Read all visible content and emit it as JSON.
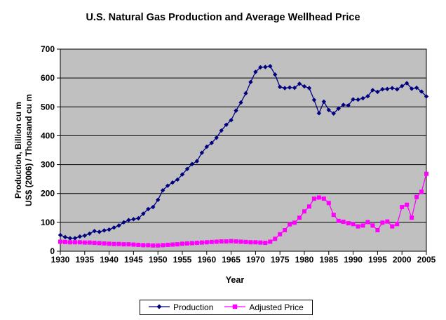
{
  "title": "U.S. Natural Gas Production and Average Wellhead Price",
  "colors": {
    "production_series": "#000080",
    "price_series": "#FF00FF",
    "plot_background": "#C0C0C0",
    "gridline": "#000000",
    "text": "#000000",
    "legend_background": "#FFFFFF"
  },
  "chart_data": {
    "type": "line",
    "title": "U.S. Natural Gas Production and Average Wellhead Price",
    "xlabel": "Year",
    "ylabel_line1": "Production, Billion cu m",
    "ylabel_line2": "US$ (2006) / Thousand cu m",
    "ylim": [
      0,
      700
    ],
    "y_ticks": [
      0,
      100,
      200,
      300,
      400,
      500,
      600,
      700
    ],
    "x_ticks": [
      1930,
      1935,
      1940,
      1945,
      1950,
      1955,
      1960,
      1965,
      1970,
      1975,
      1980,
      1985,
      1990,
      1995,
      2000,
      2005
    ],
    "grid": "horizontal",
    "legend_position": "bottom",
    "x": [
      1930,
      1931,
      1932,
      1933,
      1934,
      1935,
      1936,
      1937,
      1938,
      1939,
      1940,
      1941,
      1942,
      1943,
      1944,
      1945,
      1946,
      1947,
      1948,
      1949,
      1950,
      1951,
      1952,
      1953,
      1954,
      1955,
      1956,
      1957,
      1958,
      1959,
      1960,
      1961,
      1962,
      1963,
      1964,
      1965,
      1966,
      1967,
      1968,
      1969,
      1970,
      1971,
      1972,
      1973,
      1974,
      1975,
      1976,
      1977,
      1978,
      1979,
      1980,
      1981,
      1982,
      1983,
      1984,
      1985,
      1986,
      1987,
      1988,
      1989,
      1990,
      1991,
      1992,
      1993,
      1994,
      1995,
      1996,
      1997,
      1998,
      1999,
      2000,
      2001,
      2002,
      2003,
      2004,
      2005
    ],
    "series": [
      {
        "name": "Production",
        "marker": "diamond",
        "color": "#000080",
        "values": [
          56,
          49,
          45,
          45,
          51,
          54,
          61,
          70,
          67,
          72,
          75,
          82,
          89,
          100,
          108,
          111,
          114,
          130,
          146,
          153,
          178,
          211,
          227,
          238,
          248,
          266,
          285,
          302,
          312,
          341,
          362,
          375,
          393,
          418,
          438,
          454,
          487,
          515,
          547,
          586,
          621,
          637,
          638,
          641,
          612,
          569,
          565,
          567,
          566,
          580,
          571,
          565,
          524,
          478,
          518,
          489,
          477,
          494,
          507,
          505,
          526,
          525,
          530,
          537,
          558,
          552,
          561,
          562,
          565,
          561,
          572,
          582,
          563,
          566,
          553,
          536
        ]
      },
      {
        "name": "Adjusted Price",
        "marker": "square",
        "color": "#FF00FF",
        "values": [
          33,
          32,
          31,
          31,
          31,
          30,
          30,
          29,
          28,
          27,
          26,
          25,
          25,
          24,
          24,
          23,
          22,
          21,
          21,
          20,
          20,
          21,
          22,
          23,
          24,
          26,
          27,
          28,
          29,
          30,
          31,
          32,
          33,
          34,
          34,
          35,
          34,
          33,
          32,
          31,
          31,
          30,
          29,
          33,
          43,
          59,
          73,
          93,
          99,
          116,
          138,
          155,
          182,
          186,
          182,
          167,
          126,
          105,
          102,
          97,
          94,
          86,
          89,
          101,
          89,
          73,
          99,
          103,
          86,
          94,
          153,
          161,
          116,
          188,
          206,
          268
        ]
      }
    ]
  }
}
